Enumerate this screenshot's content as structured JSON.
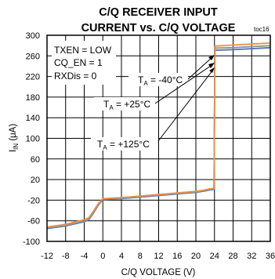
{
  "chart_data": {
    "type": "line",
    "title_lines": [
      "C/Q RECEIVER INPUT",
      "CURRENT vs. C/Q VOLTAGE"
    ],
    "tag": "toc16",
    "xlabel": "C/Q VOLTAGE (V)",
    "ylabel": {
      "main": "I",
      "sub": "IN",
      "unit": " (μA)"
    },
    "xlim": [
      -12,
      36
    ],
    "ylim": [
      -100,
      300
    ],
    "xticks": [
      "-12",
      "-8",
      "-4",
      "0",
      "4",
      "8",
      "12",
      "16",
      "20",
      "24",
      "28",
      "32",
      "36"
    ],
    "yticks": [
      "300",
      "260",
      "220",
      "180",
      "140",
      "100",
      "60",
      "20",
      "-20",
      "-60",
      "-100"
    ],
    "xtick_values": [
      -12,
      -8,
      -4,
      0,
      4,
      8,
      12,
      16,
      20,
      24,
      28,
      32,
      36
    ],
    "ytick_values": [
      300,
      260,
      220,
      180,
      140,
      100,
      60,
      20,
      -20,
      -60,
      -100
    ],
    "grid": true,
    "conditions": [
      "TXEN = LOW",
      "CQ_EN = 1",
      "RXDis = 0"
    ],
    "annotations": [
      {
        "prefix": "T",
        "sub": "A",
        "text": " = -40°C",
        "x": 22,
        "y": 247
      },
      {
        "prefix": "T",
        "sub": "A",
        "text": " = +25°C",
        "x": 14,
        "y": 213
      },
      {
        "prefix": "T",
        "sub": "A",
        "text": " = +125°C",
        "x": 10,
        "y": 157
      }
    ],
    "series": [
      {
        "color": "#4f6fb3",
        "x": [
          -12,
          -8,
          -4,
          -3,
          -2,
          -1,
          0,
          4,
          8,
          12,
          16,
          20,
          22,
          23,
          23.9,
          24.1,
          28,
          32,
          36
        ],
        "y": [
          -75,
          -70,
          -62,
          -58,
          -45,
          -30,
          -19,
          -17,
          -14,
          -11,
          -8,
          -5,
          -2,
          0,
          1,
          271,
          272,
          274,
          276
        ]
      },
      {
        "color": "#8f8f8f",
        "x": [
          -12,
          -8,
          -4,
          -3,
          -2,
          -1,
          0,
          4,
          8,
          12,
          16,
          20,
          22,
          23,
          23.9,
          24.1,
          28,
          32,
          36
        ],
        "y": [
          -74,
          -69,
          -61,
          -57,
          -44,
          -29,
          -18,
          -16,
          -13,
          -10,
          -7,
          -4,
          -1,
          1,
          2,
          275,
          276,
          278,
          280
        ]
      },
      {
        "color": "#e8914a",
        "x": [
          -12,
          -8,
          -4,
          -3,
          -2,
          -1,
          0,
          4,
          8,
          12,
          16,
          20,
          22,
          23,
          23.9,
          24.1,
          28,
          32,
          36
        ],
        "y": [
          -72,
          -67,
          -58,
          -54,
          -41,
          -27,
          -17,
          -15,
          -12,
          -9,
          -6,
          -3,
          0,
          2,
          3,
          279,
          281,
          283,
          285
        ]
      }
    ]
  }
}
